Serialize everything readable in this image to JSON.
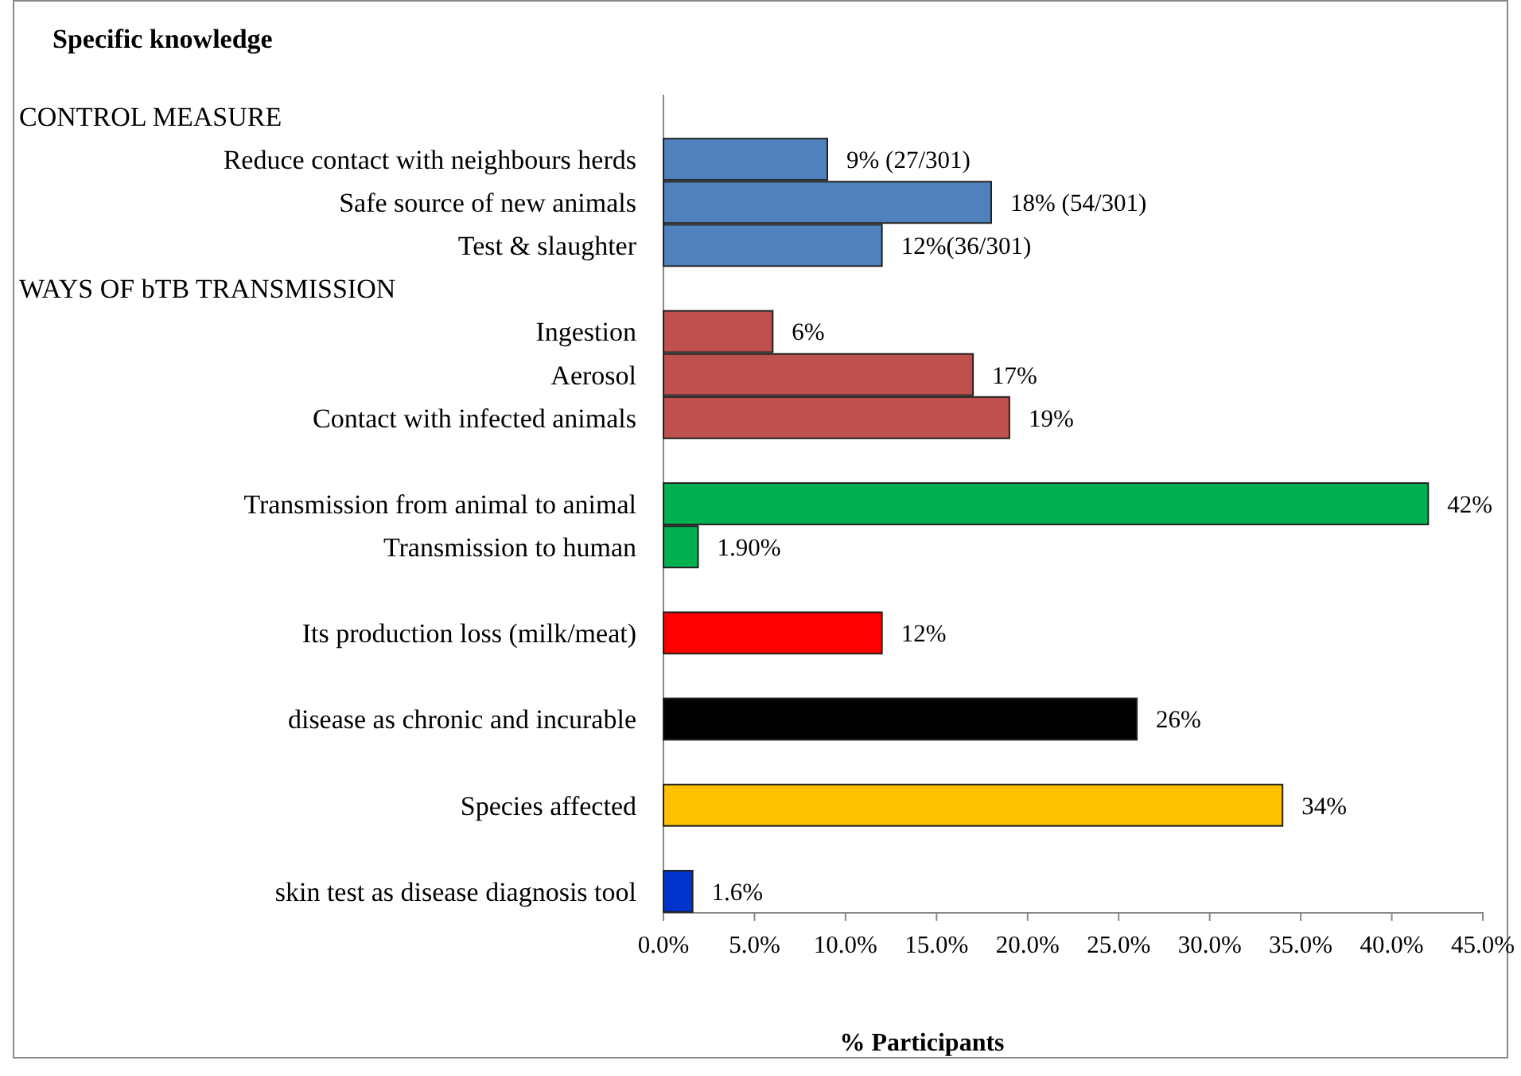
{
  "chart_data": {
    "type": "bar",
    "orientation": "horizontal",
    "title": "Specific knowledge",
    "xlabel": "% Participants",
    "annotations": [
      "CONTROL MEASURE",
      "WAYS OF bTB TRANSMISSION"
    ],
    "categories": [
      null,
      "Reduce contact with neighbours herds",
      "Safe source of new animals",
      "Test & slaughter",
      null,
      "Ingestion",
      "Aerosol",
      "Contact with infected animals",
      null,
      "Transmission from animal to animal",
      "Transmission to human",
      null,
      "Its production loss (milk/meat)",
      null,
      "disease as chronic and incurable",
      null,
      "Species affected",
      null,
      "skin test as disease diagnosis tool"
    ],
    "values": [
      null,
      9,
      18,
      12,
      null,
      6,
      17,
      19,
      null,
      42,
      1.9,
      null,
      12,
      null,
      26,
      null,
      34,
      null,
      1.6
    ],
    "colors": [
      null,
      "#4f81bd",
      "#4f81bd",
      "#4f81bd",
      null,
      "#c0504d",
      "#c0504d",
      "#c0504d",
      null,
      "#00b050",
      "#00b050",
      null,
      "#ff0000",
      null,
      "#000000",
      null,
      "#ffc000",
      null,
      "#0033cc"
    ],
    "value_labels": [
      null,
      "9% (27/301)",
      "18% (54/301)",
      "12%(36/301)",
      null,
      "6%",
      "17%",
      "19%",
      null,
      "42%",
      "1.90%",
      null,
      "12%",
      null,
      "26%",
      null,
      "34%",
      null,
      "1.6%"
    ],
    "xlim": [
      0,
      45
    ],
    "xticks": [
      {
        "value": 0,
        "label": "0.0%"
      },
      {
        "value": 5,
        "label": "5.0%"
      },
      {
        "value": 10,
        "label": "10.0%"
      },
      {
        "value": 15,
        "label": "15.0%"
      },
      {
        "value": 20,
        "label": "20.0%"
      },
      {
        "value": 25,
        "label": "25.0%"
      },
      {
        "value": 30,
        "label": "30.0%"
      },
      {
        "value": 35,
        "label": "35.0%"
      },
      {
        "value": 40,
        "label": "40.0%"
      },
      {
        "value": 45,
        "label": "45.0%"
      }
    ],
    "grid": false
  }
}
